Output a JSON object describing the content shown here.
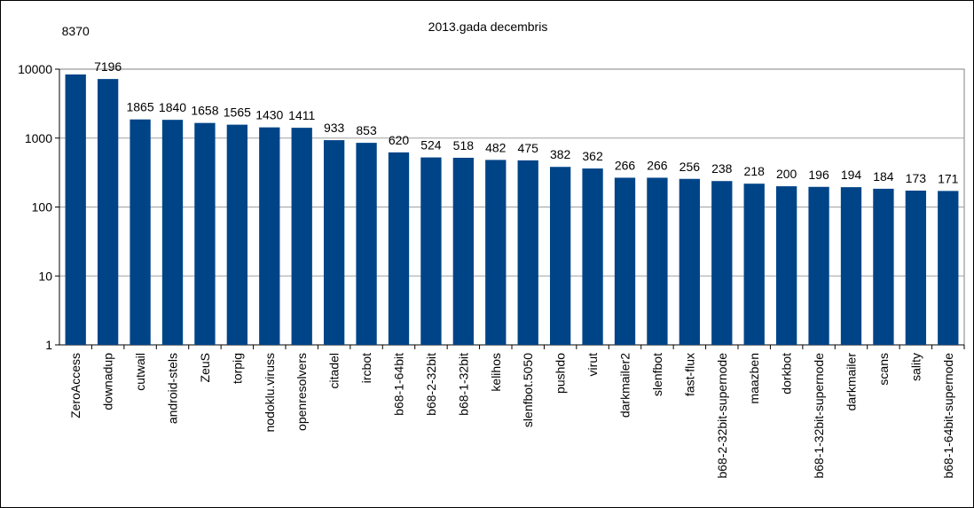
{
  "chart_data": {
    "type": "bar",
    "title": "2013.gada decembris",
    "xlabel": "",
    "ylabel": "",
    "yscale": "log",
    "ylim": [
      1,
      10000
    ],
    "yticks": [
      1,
      10,
      100,
      1000,
      10000
    ],
    "ytick_labels": [
      "1",
      "10",
      "100",
      "1000",
      "10000"
    ],
    "grid": true,
    "legend": "none",
    "bar_color": "#004488",
    "categories": [
      "ZeroAccess",
      "downadup",
      "cutwail",
      "android-stels",
      "ZeuS",
      "torpig",
      "nodoklu.viruss",
      "openresolvers",
      "citadel",
      "ircbot",
      "b68-1-64bit",
      "b68-2-32bit",
      "b68-1-32bit",
      "kelihos",
      "slenfbot.5050",
      "pushdo",
      "virut",
      "darkmailer2",
      "slenfbot",
      "fast-flux",
      "b68-2-32bit-supernode",
      "maazben",
      "dorkbot",
      "b68-1-32bit-supernode",
      "darkmailer",
      "scans",
      "sality",
      "b68-1-64bit-supernode"
    ],
    "values": [
      8370,
      7196,
      1865,
      1840,
      1658,
      1565,
      1430,
      1411,
      933,
      853,
      620,
      524,
      518,
      482,
      475,
      382,
      362,
      266,
      266,
      256,
      238,
      218,
      200,
      196,
      194,
      184,
      173,
      171
    ],
    "value_labels": [
      "8370",
      "7196",
      "1865",
      "1840",
      "1658",
      "1565",
      "1430",
      "1411",
      "933",
      "853",
      "620",
      "524",
      "518",
      "482",
      "475",
      "382",
      "362",
      "266",
      "266",
      "256",
      "238",
      "218",
      "200",
      "196",
      "194",
      "184",
      "173",
      "171"
    ]
  }
}
